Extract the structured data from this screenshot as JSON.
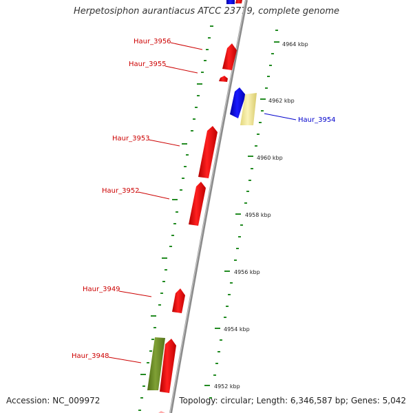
{
  "title": "Herpetosiphon aurantiacus ATCC 23779, complete genome",
  "accession": "Accession: NC_009972",
  "stats": "Topology: circular; Length: 6,346,587 bp; Genes: 5,042",
  "colors": {
    "red_gene": "#ff0000",
    "blue_gene": "#0000ff",
    "yellow_gene": "#f3e99b",
    "olive_gene": "#6b8e23",
    "tick": "#228b22",
    "backbone": "#888888"
  },
  "scale_labels": [
    "4964 kbp",
    "4962 kbp",
    "4960 kbp",
    "4958 kbp",
    "4956 kbp",
    "4954 kbp",
    "4952 kbp"
  ],
  "gene_labels": [
    {
      "id": "Haur_3956",
      "color": "#cc0000"
    },
    {
      "id": "Haur_3955",
      "color": "#cc0000"
    },
    {
      "id": "Haur_3954",
      "color": "#0000cc"
    },
    {
      "id": "Haur_3953",
      "color": "#cc0000"
    },
    {
      "id": "Haur_3952",
      "color": "#cc0000"
    },
    {
      "id": "Haur_3949",
      "color": "#cc0000"
    },
    {
      "id": "Haur_3948",
      "color": "#cc0000"
    }
  ]
}
